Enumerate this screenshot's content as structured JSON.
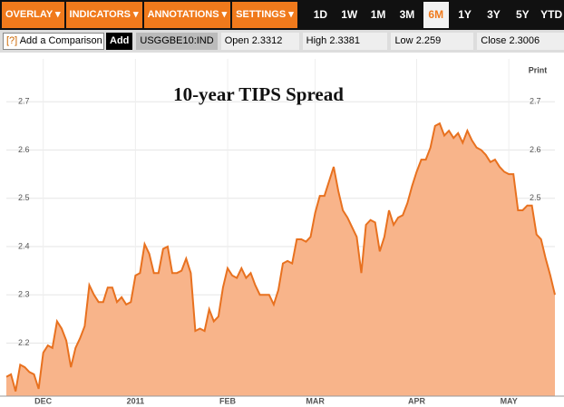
{
  "toolbar": {
    "menus": [
      "OVERLAY",
      "INDICATORS",
      "ANNOTATIONS",
      "SETTINGS"
    ],
    "ranges": [
      "1D",
      "1W",
      "1M",
      "3M",
      "6M",
      "1Y",
      "3Y",
      "5Y",
      "YTD"
    ],
    "selected": 4
  },
  "quotebar": {
    "help": "[?]",
    "placeholder": "Add a Comparison",
    "button": "Add",
    "ticker": "USGGBE10:IND",
    "fields": [
      {
        "label": "Open",
        "value": 2.3312
      },
      {
        "label": "High",
        "value": 2.3381
      },
      {
        "label": "Low",
        "value": 2.259
      },
      {
        "label": "Close",
        "value": 2.3006
      }
    ]
  },
  "print": "Print",
  "chart_data": {
    "type": "area",
    "title": "10-year TIPS Spread",
    "color": "#e8711f",
    "fill": "#f8b48a",
    "grid": true,
    "categories": [
      null,
      null,
      null,
      null,
      null,
      null,
      null,
      null,
      "DEC",
      null,
      null,
      null,
      null,
      null,
      null,
      null,
      null,
      null,
      null,
      null,
      null,
      null,
      null,
      null,
      null,
      null,
      null,
      null,
      "2011",
      null,
      null,
      null,
      null,
      null,
      null,
      null,
      null,
      null,
      null,
      null,
      null,
      null,
      null,
      null,
      null,
      null,
      null,
      null,
      "FEB",
      null,
      null,
      null,
      null,
      null,
      null,
      null,
      null,
      null,
      null,
      null,
      null,
      null,
      null,
      null,
      null,
      null,
      null,
      "MAR",
      null,
      null,
      null,
      null,
      null,
      null,
      null,
      null,
      null,
      null,
      null,
      null,
      null,
      null,
      null,
      null,
      null,
      null,
      null,
      null,
      null,
      "APR",
      null,
      null,
      null,
      null,
      null,
      null,
      null,
      null,
      null,
      null,
      null,
      null,
      null,
      null,
      null,
      null,
      null,
      null,
      null,
      "MAY",
      null,
      null,
      null,
      null,
      null,
      null,
      null,
      null,
      null,
      null
    ],
    "values": [
      2.13,
      2.135,
      2.1,
      2.155,
      2.15,
      2.14,
      2.135,
      2.105,
      2.18,
      2.195,
      2.19,
      2.245,
      2.23,
      2.205,
      2.15,
      2.19,
      2.21,
      2.235,
      2.32,
      2.3,
      2.285,
      2.285,
      2.315,
      2.315,
      2.285,
      2.295,
      2.28,
      2.285,
      2.34,
      2.345,
      2.405,
      2.385,
      2.345,
      2.345,
      2.395,
      2.4,
      2.345,
      2.345,
      2.35,
      2.375,
      2.345,
      2.225,
      2.23,
      2.225,
      2.27,
      2.245,
      2.255,
      2.315,
      2.355,
      2.34,
      2.335,
      2.355,
      2.335,
      2.345,
      2.32,
      2.3,
      2.3,
      2.3,
      2.28,
      2.31,
      2.365,
      2.37,
      2.365,
      2.415,
      2.415,
      2.41,
      2.42,
      2.47,
      2.505,
      2.505,
      2.535,
      2.565,
      2.515,
      2.475,
      2.46,
      2.44,
      2.42,
      2.345,
      2.445,
      2.455,
      2.45,
      2.39,
      2.42,
      2.475,
      2.445,
      2.46,
      2.465,
      2.49,
      2.525,
      2.555,
      2.58,
      2.58,
      2.605,
      2.65,
      2.655,
      2.63,
      2.64,
      2.625,
      2.635,
      2.615,
      2.64,
      2.62,
      2.605,
      2.6,
      2.59,
      2.575,
      2.58,
      2.565,
      2.555,
      2.55,
      2.55,
      2.475,
      2.475,
      2.485,
      2.485,
      2.425,
      2.415,
      2.375,
      2.34,
      2.3
    ],
    "ylim": [
      2.09,
      2.77
    ],
    "yticks": [
      2.2,
      2.3,
      2.4,
      2.5,
      2.6,
      2.7
    ]
  }
}
